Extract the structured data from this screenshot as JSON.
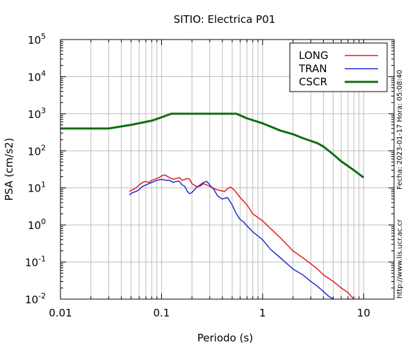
{
  "chart_data": {
    "type": "line",
    "title": "SITIO: Electrica P01",
    "xlabel": "Periodo (s)",
    "ylabel": "PSA (cm/s2)",
    "xscale": "log",
    "yscale": "log",
    "xlim": [
      0.01,
      20
    ],
    "ylim": [
      0.01,
      100000
    ],
    "grid": true,
    "legend_position": "top-right",
    "x_tick_labels": [
      "0.01",
      "0.1",
      "1",
      "10"
    ],
    "y_tick_labels": [
      {
        "base": "10",
        "exp": "-2"
      },
      {
        "base": "10",
        "exp": "-1"
      },
      {
        "base": "10",
        "exp": "0"
      },
      {
        "base": "10",
        "exp": "1"
      },
      {
        "base": "10",
        "exp": "2"
      },
      {
        "base": "10",
        "exp": "3"
      },
      {
        "base": "10",
        "exp": "4"
      },
      {
        "base": "10",
        "exp": "5"
      }
    ],
    "side_text_date": "Fecha: 2023-01-17  Hora: 05:08:40",
    "side_text_url": "http://www.lis.ucr.ac.cr",
    "series": [
      {
        "name": "LONG",
        "color": "#e31a1c",
        "x": [
          0.048,
          0.052,
          0.056,
          0.06,
          0.065,
          0.07,
          0.075,
          0.08,
          0.085,
          0.09,
          0.095,
          0.1,
          0.105,
          0.11,
          0.115,
          0.12,
          0.13,
          0.14,
          0.15,
          0.16,
          0.17,
          0.18,
          0.19,
          0.2,
          0.22,
          0.24,
          0.26,
          0.28,
          0.3,
          0.32,
          0.35,
          0.38,
          0.42,
          0.45,
          0.48,
          0.52,
          0.56,
          0.6,
          0.7,
          0.8,
          1.0,
          1.2,
          1.5,
          2.0,
          2.5,
          3.0,
          3.5,
          4.0,
          5.0,
          6.0,
          7.0,
          8.0
        ],
        "y": [
          8,
          9,
          10,
          12,
          14,
          15,
          14,
          16,
          17,
          18,
          19,
          21,
          22,
          22,
          20,
          19,
          17,
          18,
          19,
          16,
          17,
          18,
          17,
          13,
          11,
          11,
          13,
          12,
          11,
          10,
          9,
          8.5,
          8,
          9.5,
          10.5,
          9,
          7,
          5.5,
          3.5,
          2.0,
          1.3,
          0.8,
          0.45,
          0.2,
          0.13,
          0.09,
          0.065,
          0.045,
          0.03,
          0.02,
          0.015,
          0.01
        ]
      },
      {
        "name": "TRAN",
        "color": "#1d2dd0",
        "x": [
          0.048,
          0.052,
          0.056,
          0.06,
          0.065,
          0.07,
          0.075,
          0.08,
          0.085,
          0.09,
          0.095,
          0.1,
          0.11,
          0.12,
          0.13,
          0.14,
          0.15,
          0.16,
          0.17,
          0.18,
          0.19,
          0.2,
          0.22,
          0.24,
          0.26,
          0.28,
          0.3,
          0.33,
          0.36,
          0.4,
          0.45,
          0.5,
          0.55,
          0.6,
          0.65,
          0.7,
          0.8,
          1.0,
          1.2,
          1.5,
          2.0,
          2.5,
          3.0,
          3.5,
          4.0,
          4.5,
          5.0
        ],
        "y": [
          6.5,
          7.5,
          8,
          9,
          11,
          12,
          13,
          14,
          15,
          16,
          16.5,
          17,
          16,
          16,
          14,
          15,
          15,
          12,
          11,
          8,
          7,
          7.5,
          10,
          12,
          14,
          15,
          12,
          9,
          6,
          5,
          5.5,
          3.5,
          2,
          1.4,
          1.2,
          0.95,
          0.65,
          0.4,
          0.22,
          0.13,
          0.065,
          0.045,
          0.03,
          0.022,
          0.016,
          0.012,
          0.01
        ]
      },
      {
        "name": "CSCR",
        "color": "#0e6e0e",
        "x": [
          0.01,
          0.02,
          0.03,
          0.05,
          0.08,
          0.1,
          0.125,
          0.2,
          0.3,
          0.4,
          0.55,
          0.7,
          1.0,
          1.5,
          2.0,
          2.5,
          3.0,
          3.5,
          4.0,
          5.0,
          6.0,
          8.0,
          10.0
        ],
        "y": [
          400,
          400,
          400,
          500,
          650,
          800,
          1000,
          1000,
          1000,
          1000,
          1000,
          750,
          550,
          350,
          280,
          220,
          185,
          160,
          130,
          80,
          52,
          30,
          19
        ]
      }
    ]
  }
}
